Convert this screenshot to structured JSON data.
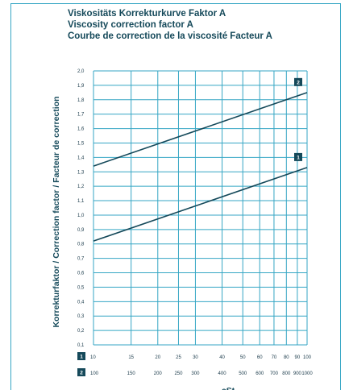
{
  "chart_data": {
    "type": "line",
    "title_lines": [
      "Viskositäts Korrekturkurve Faktor A",
      "Viscosity correction factor A",
      "Courbe de correction de la viscosité Facteur A"
    ],
    "ylabel": "Korrekturfaktor / Correction factor / Facteur de correction",
    "xlabel": "cSt",
    "x_scale": "log",
    "grid": true,
    "ylim": [
      0.1,
      2.0
    ],
    "y_ticks": [
      "0,1",
      "0,2",
      "0,3",
      "0,4",
      "0,5",
      "0,6",
      "0,7",
      "0,8",
      "0,9",
      "1,0",
      "1,1",
      "1,2",
      "1,3",
      "1,4",
      "1,5",
      "1,6",
      "1,7",
      "1,8",
      "1,9",
      "2,0"
    ],
    "x_axes": [
      {
        "badge": "1",
        "ticks": [
          {
            "v": 10,
            "label": "10"
          },
          {
            "v": 15,
            "label": "15"
          },
          {
            "v": 20,
            "label": "20"
          },
          {
            "v": 25,
            "label": "25"
          },
          {
            "v": 30,
            "label": "30"
          },
          {
            "v": 40,
            "label": "40"
          },
          {
            "v": 50,
            "label": "50"
          },
          {
            "v": 60,
            "label": "60"
          },
          {
            "v": 70,
            "label": "70"
          },
          {
            "v": 80,
            "label": "80"
          },
          {
            "v": 90,
            "label": "90"
          },
          {
            "v": 100,
            "label": "100"
          }
        ]
      },
      {
        "badge": "2",
        "ticks": [
          {
            "v": 100,
            "label": "100"
          },
          {
            "v": 150,
            "label": "150"
          },
          {
            "v": 200,
            "label": "200"
          },
          {
            "v": 250,
            "label": "250"
          },
          {
            "v": 300,
            "label": "300"
          },
          {
            "v": 400,
            "label": "400"
          },
          {
            "v": 500,
            "label": "500"
          },
          {
            "v": 600,
            "label": "600"
          },
          {
            "v": 700,
            "label": "700"
          },
          {
            "v": 800,
            "label": "800"
          },
          {
            "v": 900,
            "label": "900"
          },
          {
            "v": 1000,
            "label": "1000"
          }
        ]
      }
    ],
    "series": [
      {
        "badge": "1",
        "x": [
          10,
          100
        ],
        "y": [
          0.82,
          1.33
        ]
      },
      {
        "badge": "2",
        "x": [
          100,
          1000
        ],
        "y": [
          1.34,
          1.85
        ]
      }
    ],
    "colors": {
      "grid": "#35a6c4",
      "line": "#15495a",
      "badge": "#15495a"
    }
  }
}
